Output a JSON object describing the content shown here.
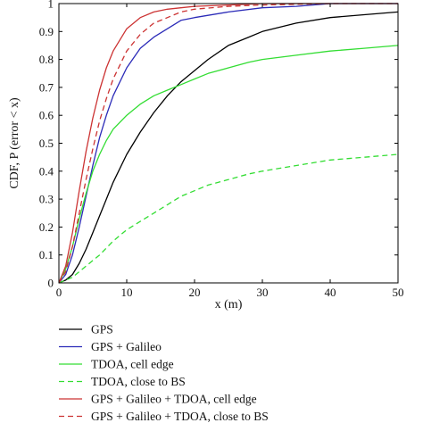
{
  "chart_data": {
    "type": "line",
    "title": "",
    "xlabel": "x (m)",
    "ylabel": "CDF, P (error < x)",
    "xlim": [
      0,
      50
    ],
    "ylim": [
      0,
      1
    ],
    "xticks": [
      0,
      10,
      20,
      30,
      40,
      50
    ],
    "yticks": [
      0,
      0.1,
      0.2,
      0.3,
      0.4,
      0.5,
      0.6,
      0.7,
      0.8,
      0.9,
      1
    ],
    "grid": false,
    "legend_position": "below plot",
    "series": [
      {
        "name": "GPS",
        "color": "#000000",
        "dash": "solid",
        "x": [
          0,
          1,
          2,
          3,
          4,
          5,
          6,
          7,
          8,
          10,
          12,
          14,
          16,
          18,
          20,
          22,
          25,
          28,
          30,
          35,
          40,
          45,
          50
        ],
        "y": [
          0,
          0.01,
          0.03,
          0.07,
          0.12,
          0.18,
          0.24,
          0.3,
          0.36,
          0.46,
          0.54,
          0.61,
          0.67,
          0.72,
          0.76,
          0.8,
          0.85,
          0.88,
          0.9,
          0.93,
          0.95,
          0.96,
          0.97
        ]
      },
      {
        "name": "GPS + Galileo",
        "color": "#2b2bb8",
        "dash": "solid",
        "x": [
          0,
          1,
          2,
          3,
          4,
          5,
          6,
          7,
          8,
          10,
          12,
          14,
          16,
          18,
          20,
          25,
          30,
          35,
          40,
          50
        ],
        "y": [
          0,
          0.03,
          0.1,
          0.2,
          0.31,
          0.42,
          0.52,
          0.6,
          0.67,
          0.77,
          0.84,
          0.88,
          0.91,
          0.94,
          0.95,
          0.97,
          0.985,
          0.99,
          1.0,
          1.0
        ]
      },
      {
        "name": "TDOA, cell edge",
        "color": "#33dd33",
        "dash": "solid",
        "x": [
          0,
          1,
          2,
          3,
          4,
          5,
          6,
          7,
          8,
          10,
          12,
          14,
          16,
          18,
          20,
          22,
          25,
          28,
          30,
          35,
          40,
          45,
          50
        ],
        "y": [
          0,
          0.05,
          0.13,
          0.23,
          0.32,
          0.4,
          0.46,
          0.51,
          0.55,
          0.6,
          0.64,
          0.67,
          0.69,
          0.71,
          0.73,
          0.75,
          0.77,
          0.79,
          0.8,
          0.815,
          0.83,
          0.84,
          0.85
        ]
      },
      {
        "name": "TDOA, close to BS",
        "color": "#33dd33",
        "dash": "dashed",
        "x": [
          0,
          2,
          4,
          6,
          8,
          10,
          12,
          14,
          16,
          18,
          20,
          22,
          25,
          28,
          30,
          35,
          40,
          45,
          50
        ],
        "y": [
          0,
          0.02,
          0.06,
          0.1,
          0.15,
          0.19,
          0.22,
          0.25,
          0.28,
          0.31,
          0.33,
          0.35,
          0.37,
          0.39,
          0.4,
          0.42,
          0.44,
          0.45,
          0.46
        ]
      },
      {
        "name": "GPS + Galileo + TDOA, cell edge",
        "color": "#cc3333",
        "dash": "solid",
        "x": [
          0,
          1,
          2,
          3,
          4,
          5,
          6,
          7,
          8,
          10,
          12,
          14,
          16,
          18,
          20,
          25,
          30,
          40,
          50
        ],
        "y": [
          0,
          0.06,
          0.18,
          0.33,
          0.47,
          0.59,
          0.69,
          0.77,
          0.83,
          0.91,
          0.95,
          0.97,
          0.98,
          0.985,
          0.99,
          0.995,
          1.0,
          1.0,
          1.0
        ]
      },
      {
        "name": "GPS + Galileo + TDOA, close to BS",
        "color": "#cc3333",
        "dash": "dashed",
        "x": [
          0,
          1,
          2,
          3,
          4,
          5,
          6,
          7,
          8,
          10,
          12,
          14,
          16,
          18,
          20,
          25,
          30,
          40,
          50
        ],
        "y": [
          0,
          0.04,
          0.13,
          0.25,
          0.37,
          0.48,
          0.58,
          0.66,
          0.73,
          0.83,
          0.89,
          0.93,
          0.95,
          0.97,
          0.98,
          0.99,
          0.995,
          1.0,
          1.0
        ]
      }
    ]
  }
}
